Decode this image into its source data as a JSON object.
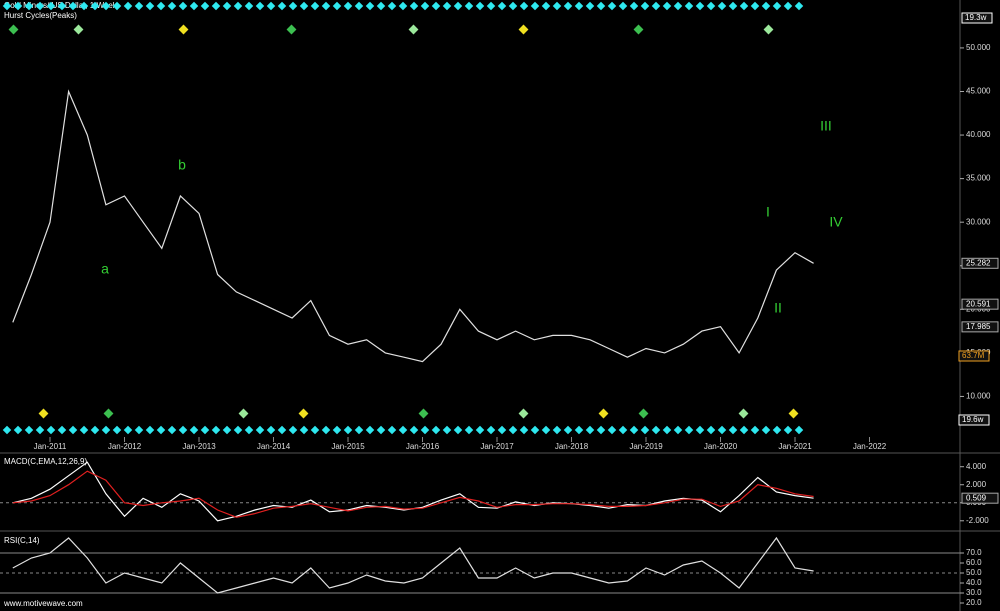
{
  "chart_data": [
    {
      "type": "line",
      "title": "Gold Miners/ US Dollar, 1 Week",
      "subtitle": "Hurst Cycles(Peaks)",
      "x": [
        "Jul-2010",
        "Oct-2010",
        "Jan-2011",
        "Apr-2011",
        "Jul-2011",
        "Oct-2011",
        "Jan-2012",
        "Apr-2012",
        "Jul-2012",
        "Oct-2012",
        "Jan-2013",
        "Apr-2013",
        "Jul-2013",
        "Oct-2013",
        "Jan-2014",
        "Apr-2014",
        "Jul-2014",
        "Oct-2014",
        "Jan-2015",
        "Apr-2015",
        "Jul-2015",
        "Oct-2015",
        "Jan-2016",
        "Apr-2016",
        "Jul-2016",
        "Oct-2016",
        "Jan-2017",
        "Apr-2017",
        "Jul-2017",
        "Oct-2017",
        "Jan-2018",
        "Apr-2018",
        "Jul-2018",
        "Oct-2018",
        "Jan-2019",
        "Apr-2019",
        "Jul-2019",
        "Oct-2019",
        "Jan-2020",
        "Apr-2020",
        "Jul-2020",
        "Oct-2020",
        "Jan-2021",
        "Apr-2021"
      ],
      "series": [
        {
          "color": "#e0e0e0",
          "values": [
            18.5,
            24,
            30,
            45,
            40,
            32,
            33,
            30,
            27,
            33,
            31,
            24,
            22,
            21,
            20,
            19,
            21,
            17,
            16,
            16.5,
            15,
            14.5,
            14,
            16,
            20,
            17.5,
            16.5,
            17.5,
            16.5,
            17,
            17,
            16.5,
            15.5,
            14.5,
            15.5,
            15,
            16,
            17.5,
            18,
            15,
            19,
            24.5,
            26.5,
            25.282
          ]
        }
      ],
      "xticks": [
        "Jan-2011",
        "Jan-2012",
        "Jan-2013",
        "Jan-2014",
        "Jan-2015",
        "Jan-2016",
        "Jan-2017",
        "Jan-2018",
        "Jan-2019",
        "Jan-2020",
        "Jan-2021",
        "Jan-2022"
      ],
      "ylim": [
        5,
        55.5
      ],
      "yticks": [
        {
          "value": 10,
          "label": "10.000"
        },
        {
          "value": 15,
          "label": "15.000"
        },
        {
          "value": 20,
          "label": "20.000"
        },
        {
          "value": 25,
          "label": "25.000"
        },
        {
          "value": 30,
          "label": "30.000"
        },
        {
          "value": 35,
          "label": "35.000"
        },
        {
          "value": 40,
          "label": "40.000"
        },
        {
          "value": 45,
          "label": "45.000"
        },
        {
          "value": 50,
          "label": "50.000"
        }
      ],
      "price_labels": [
        {
          "value": 25.282,
          "label": "25.282"
        },
        {
          "value": 20.591,
          "label": "20.591"
        },
        {
          "value": 17.985,
          "label": "17.985"
        }
      ],
      "annotations": [
        "a",
        "b",
        "I",
        "II",
        "III",
        "IV"
      ],
      "cycle_labels": [
        "19.3w",
        "63.7M",
        "19.6w"
      ]
    },
    {
      "type": "line",
      "title": "MACD(C,EMA,12,26,9)",
      "x": [
        "Jul-2010",
        "Oct-2010",
        "Jan-2011",
        "Apr-2011",
        "Jul-2011",
        "Oct-2011",
        "Jan-2012",
        "Apr-2012",
        "Jul-2012",
        "Oct-2012",
        "Jan-2013",
        "Apr-2013",
        "Jul-2013",
        "Oct-2013",
        "Jan-2014",
        "Apr-2014",
        "Jul-2014",
        "Oct-2014",
        "Jan-2015",
        "Apr-2015",
        "Jul-2015",
        "Oct-2015",
        "Jan-2016",
        "Apr-2016",
        "Jul-2016",
        "Oct-2016",
        "Jan-2017",
        "Apr-2017",
        "Jul-2017",
        "Oct-2017",
        "Jan-2018",
        "Apr-2018",
        "Jul-2018",
        "Oct-2018",
        "Jan-2019",
        "Apr-2019",
        "Jul-2019",
        "Oct-2019",
        "Jan-2020",
        "Apr-2020",
        "Jul-2020",
        "Oct-2020",
        "Jan-2021",
        "Apr-2021"
      ],
      "series": [
        {
          "color": "#ffffff",
          "values": [
            0,
            0.5,
            1.5,
            3,
            4.5,
            1,
            -1.5,
            0.5,
            -0.5,
            1,
            0.2,
            -2,
            -1.5,
            -0.8,
            -0.3,
            -0.5,
            0.3,
            -1,
            -0.8,
            -0.3,
            -0.5,
            -0.8,
            -0.5,
            0.3,
            1,
            -0.5,
            -0.6,
            0.1,
            -0.3,
            0,
            -0.1,
            -0.3,
            -0.6,
            -0.2,
            -0.3,
            0.2,
            0.5,
            0.3,
            -1,
            0.8,
            2.8,
            1.2,
            0.8,
            0.509
          ]
        },
        {
          "color": "#e02020",
          "values": [
            0,
            0.2,
            0.8,
            2,
            3.5,
            2.5,
            0,
            -0.3,
            0,
            0.2,
            0.5,
            -0.8,
            -1.6,
            -1.2,
            -0.6,
            -0.4,
            -0.1,
            -0.5,
            -0.9,
            -0.5,
            -0.4,
            -0.7,
            -0.6,
            0,
            0.6,
            0.2,
            -0.5,
            -0.2,
            -0.2,
            -0.1,
            -0.1,
            -0.2,
            -0.4,
            -0.4,
            -0.3,
            0,
            0.4,
            0.4,
            -0.4,
            0.2,
            2,
            1.6,
            1.0,
            0.7
          ]
        }
      ],
      "ylim": [
        -2.8,
        5.3
      ],
      "yticks": [
        {
          "value": -2,
          "label": "-2.000"
        },
        {
          "value": 0,
          "label": "0.000"
        },
        {
          "value": 2,
          "label": "2.000"
        },
        {
          "value": 4,
          "label": "4.000"
        }
      ],
      "price_labels": [
        {
          "value": 0.509,
          "label": "0.509"
        }
      ]
    },
    {
      "type": "line",
      "title": "RSI(C,14)",
      "x": [
        "Jul-2010",
        "Oct-2010",
        "Jan-2011",
        "Apr-2011",
        "Jul-2011",
        "Oct-2011",
        "Jan-2012",
        "Apr-2012",
        "Jul-2012",
        "Oct-2012",
        "Jan-2013",
        "Apr-2013",
        "Jul-2013",
        "Oct-2013",
        "Jan-2014",
        "Apr-2014",
        "Jul-2014",
        "Oct-2014",
        "Jan-2015",
        "Apr-2015",
        "Jul-2015",
        "Oct-2015",
        "Jan-2016",
        "Apr-2016",
        "Jul-2016",
        "Oct-2016",
        "Jan-2017",
        "Apr-2017",
        "Jul-2017",
        "Oct-2017",
        "Jan-2018",
        "Apr-2018",
        "Jul-2018",
        "Oct-2018",
        "Jan-2019",
        "Apr-2019",
        "Jul-2019",
        "Oct-2019",
        "Jan-2020",
        "Apr-2020",
        "Jul-2020",
        "Oct-2020",
        "Jan-2021",
        "Apr-2021"
      ],
      "series": [
        {
          "color": "#e0e0e0",
          "values": [
            55,
            65,
            70,
            85,
            65,
            40,
            50,
            45,
            40,
            60,
            45,
            30,
            35,
            40,
            45,
            40,
            55,
            35,
            40,
            48,
            42,
            40,
            45,
            60,
            75,
            45,
            45,
            55,
            45,
            50,
            50,
            45,
            40,
            42,
            55,
            48,
            58,
            62,
            50,
            35,
            60,
            85,
            55,
            52
          ]
        }
      ],
      "ylim": [
        12,
        87
      ],
      "yticks": [
        {
          "value": 20,
          "label": "20.0"
        },
        {
          "value": 30,
          "label": "30.0"
        },
        {
          "value": 40,
          "label": "40.0"
        },
        {
          "value": 50,
          "label": "50.0"
        },
        {
          "value": 60,
          "label": "60.0"
        },
        {
          "value": 70,
          "label": "70.0"
        }
      ],
      "grid_values": [
        30,
        50,
        70
      ]
    }
  ],
  "watermark": "www.motivewave.com"
}
